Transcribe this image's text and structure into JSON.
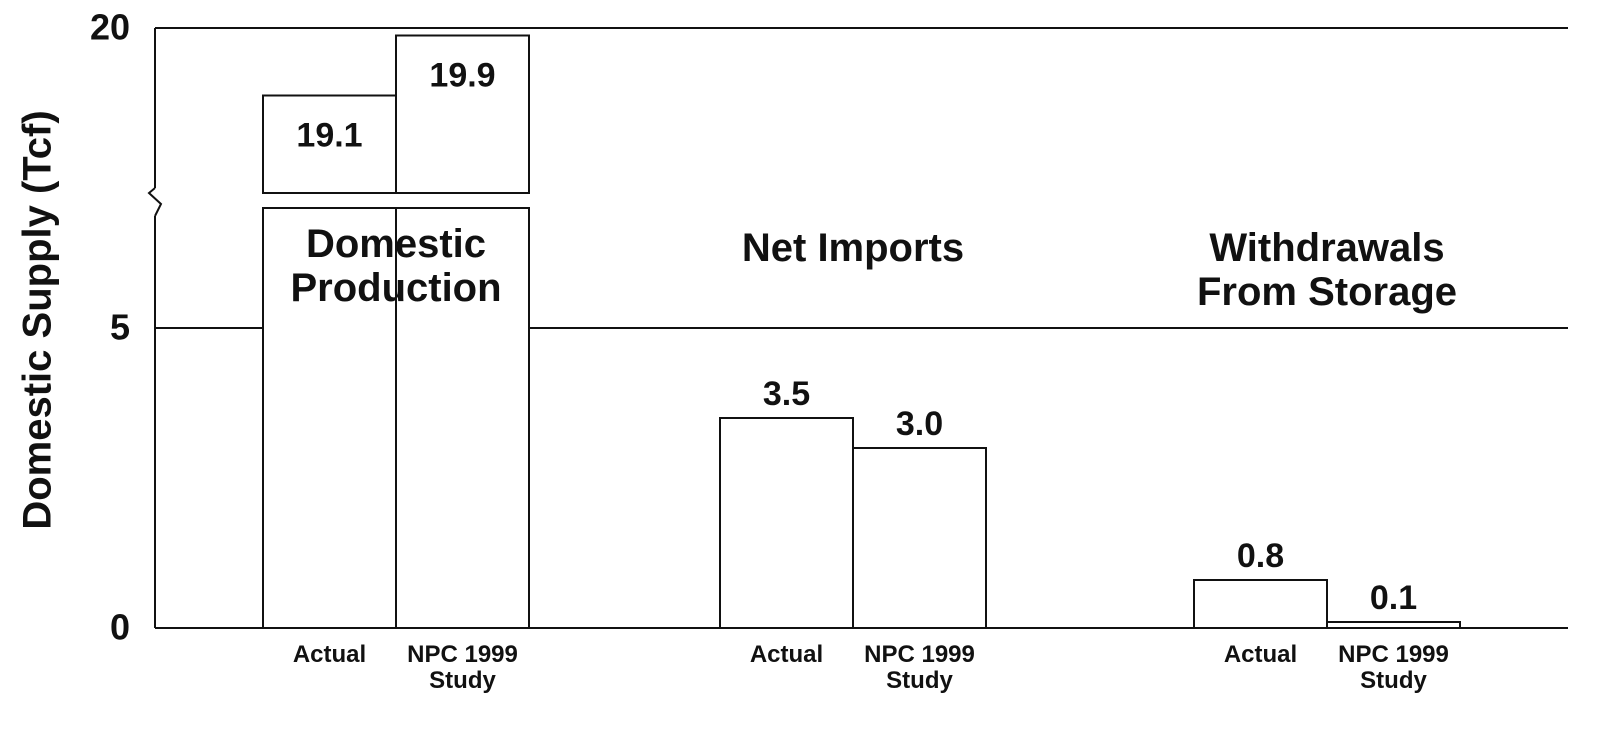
{
  "chart_data": {
    "type": "bar",
    "y_label": "Domestic Supply (Tcf)",
    "categories": [
      "Domestic Production",
      "Net Imports",
      "Withdrawals From Storage"
    ],
    "series": [
      {
        "name": "Actual",
        "color": "#ffffff",
        "values": [
          19.1,
          3.5,
          0.8
        ],
        "value_labels": [
          "19.1",
          "3.5",
          "0.8"
        ]
      },
      {
        "name": "NPC 1999 Study",
        "color": "#ffffff",
        "values": [
          19.9,
          3.0,
          0.1
        ],
        "value_labels": [
          "19.9",
          "3.0",
          "0.1"
        ]
      }
    ],
    "ylim": [
      0,
      20
    ],
    "axis_break": [
      7,
      17.8
    ],
    "yticks": [
      0,
      5,
      20
    ],
    "grid": true
  }
}
